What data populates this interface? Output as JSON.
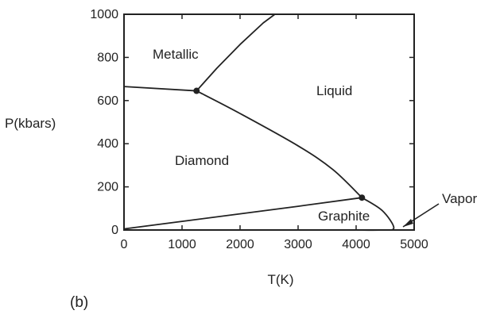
{
  "chart_data": {
    "type": "line",
    "xlabel": "T(K)",
    "ylabel": "P(kbars)",
    "xlim": [
      0,
      5000
    ],
    "ylim": [
      0,
      1000
    ],
    "xticks": [
      "0",
      "1000",
      "2000",
      "3000",
      "4000",
      "5000"
    ],
    "yticks": [
      "0",
      "200",
      "400",
      "600",
      "800",
      "1000"
    ],
    "grid": false,
    "panel_label": "(b)",
    "regions": [
      "Metallic",
      "Liquid",
      "Diamond",
      "Graphite"
    ],
    "annotation": "Vapor",
    "curves": [
      {
        "id": "metallic-diamond",
        "x": [
          0,
          1250
        ],
        "y": [
          665,
          645
        ]
      },
      {
        "id": "metallic-liquid",
        "x": [
          1250,
          1600,
          2000,
          2400,
          2600
        ],
        "y": [
          645,
          750,
          860,
          960,
          1000
        ]
      },
      {
        "id": "diamond-liquid",
        "x": [
          1250,
          2000,
          3000,
          3600,
          4100
        ],
        "y": [
          645,
          540,
          390,
          280,
          150
        ]
      },
      {
        "id": "diamond-graphite",
        "x": [
          0,
          1000,
          2000,
          3000,
          4100
        ],
        "y": [
          5,
          40,
          75,
          110,
          150
        ]
      },
      {
        "id": "graphite-liquid",
        "x": [
          4100,
          4450,
          4650,
          4450,
          4000
        ],
        "y": [
          150,
          90,
          10,
          0,
          0
        ]
      }
    ],
    "points": [
      {
        "x": 1250,
        "y": 645
      },
      {
        "x": 4100,
        "y": 150
      }
    ]
  }
}
